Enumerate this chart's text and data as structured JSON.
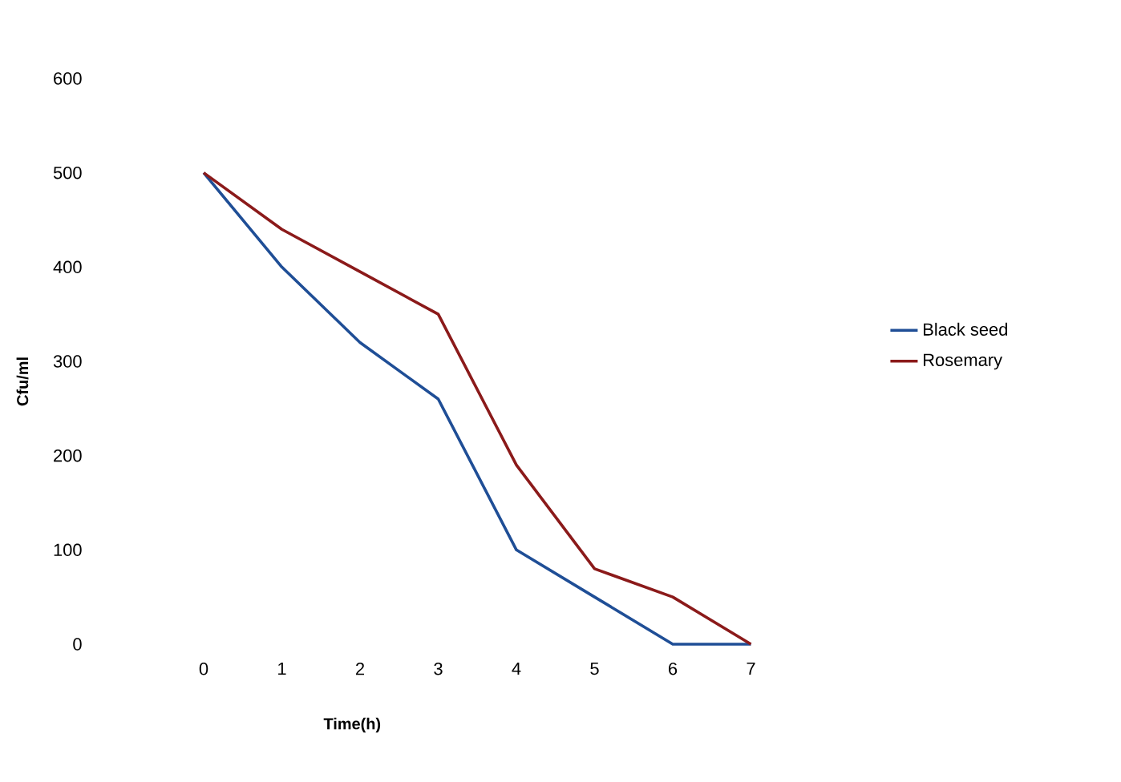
{
  "chart_data": {
    "type": "line",
    "xlabel": "Time(h)",
    "ylabel": "Cfu/ml",
    "categories": [
      "0",
      "1",
      "2",
      "3",
      "4",
      "5",
      "6",
      "7"
    ],
    "series": [
      {
        "name": "Black seed",
        "color": "#1f4e96",
        "values": [
          500,
          400,
          320,
          260,
          100,
          50,
          0,
          0
        ]
      },
      {
        "name": "Rosemary",
        "color": "#8b1a1a",
        "values": [
          500,
          440,
          395,
          350,
          190,
          80,
          50,
          0
        ]
      }
    ],
    "ylim": [
      0,
      600
    ],
    "yticks": [
      0,
      100,
      200,
      300,
      400,
      500,
      600
    ],
    "grid": false,
    "legend": "right",
    "marker": "none",
    "line_style": "solid"
  }
}
